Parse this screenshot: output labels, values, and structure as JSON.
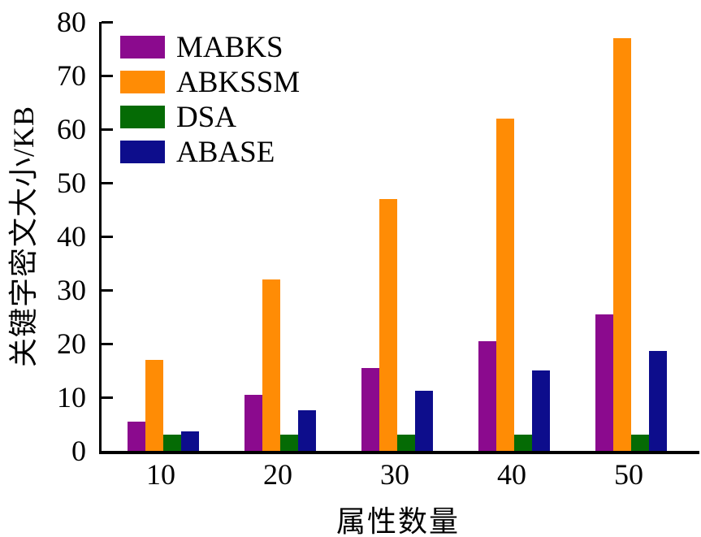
{
  "chart_data": {
    "type": "bar",
    "title": "",
    "xlabel": "属性数量",
    "ylabel": "关键字密文大小/KB",
    "categories": [
      "10",
      "20",
      "30",
      "40",
      "50"
    ],
    "series": [
      {
        "name": "MABKS",
        "color": "#8B0A8E",
        "values": [
          5.5,
          10.5,
          15.5,
          20.5,
          25.5
        ]
      },
      {
        "name": "ABKSSM",
        "color": "#FF8C05",
        "values": [
          17,
          32,
          47,
          62,
          77
        ]
      },
      {
        "name": "DSA",
        "color": "#056B05",
        "values": [
          3,
          3,
          3,
          3,
          3
        ]
      },
      {
        "name": "ABASE",
        "color": "#0D0D8C",
        "values": [
          3.7,
          7.5,
          11.2,
          15,
          18.7
        ]
      }
    ],
    "ylim": [
      0,
      80
    ],
    "y_ticks": [
      0,
      10,
      20,
      30,
      40,
      50,
      60,
      70,
      80
    ],
    "grid": false,
    "legend_position": "top-left-inside",
    "axis_color": "#000000",
    "text_color": "#000000",
    "background_color": "#ffffff"
  }
}
